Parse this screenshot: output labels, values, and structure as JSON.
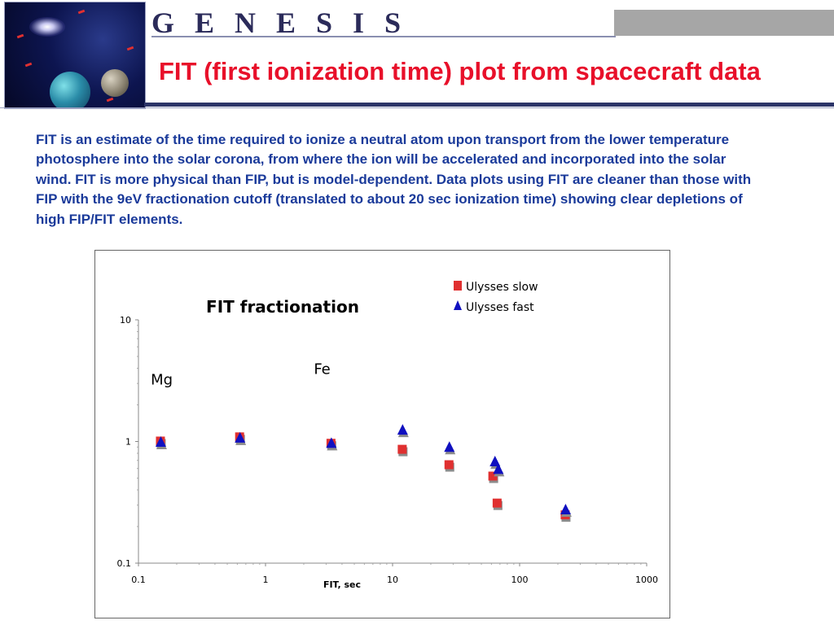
{
  "header": {
    "brand": "G E N E S I S",
    "title": "FIT (first ionization time) plot from spacecraft data"
  },
  "body_text": "FIT is an estimate of the time required to ionize a neutral atom upon transport from the lower temperature photosphere into the solar corona, from where the ion will be accelerated and incorporated into the solar wind.  FIT is more physical than FIP, but is model-dependent. Data plots using FIT are cleaner than those with FIP with the 9eV fractionation cutoff (translated to about 20 sec ionization time) showing clear depletions of high FIP/FIT elements.",
  "colors": {
    "title": "#e8102a",
    "body_text": "#1a3a9a",
    "slow_marker": "#e03030",
    "fast_marker": "#1010c0",
    "shadow": "#8c8c8c",
    "header_band": "#2c3468"
  },
  "chart_data": {
    "type": "scatter",
    "title": "FIT fractionation",
    "xlabel": "FIT, sec",
    "ylabel": "",
    "xscale": "log",
    "yscale": "log",
    "xlim": [
      0.1,
      1000
    ],
    "ylim": [
      0.1,
      10
    ],
    "x_ticks": [
      0.1,
      1,
      10,
      100,
      1000
    ],
    "x_tick_labels": [
      "0.1",
      "1",
      "10",
      "100",
      "1000"
    ],
    "y_ticks": [
      0.1,
      1,
      10
    ],
    "y_tick_labels": [
      "0.1",
      "1",
      "10"
    ],
    "legend_position": "top-right",
    "annotations": [
      {
        "text": "Mg",
        "x": 0.125,
        "y": 2.95
      },
      {
        "text": "Fe",
        "x": 2.4,
        "y": 3.6
      }
    ],
    "series": [
      {
        "name": "Ulysses slow",
        "marker": "square",
        "x": [
          0.15,
          0.63,
          3.3,
          12,
          28,
          62,
          67,
          230
        ],
        "y": [
          0.97,
          1.05,
          0.93,
          0.83,
          0.62,
          0.5,
          0.3,
          0.24
        ]
      },
      {
        "name": "Ulysses fast",
        "marker": "triangle",
        "x": [
          0.15,
          0.63,
          3.3,
          12,
          28,
          64,
          68,
          230
        ],
        "y": [
          0.97,
          1.05,
          0.95,
          1.22,
          0.88,
          0.67,
          0.58,
          0.27
        ]
      }
    ]
  }
}
